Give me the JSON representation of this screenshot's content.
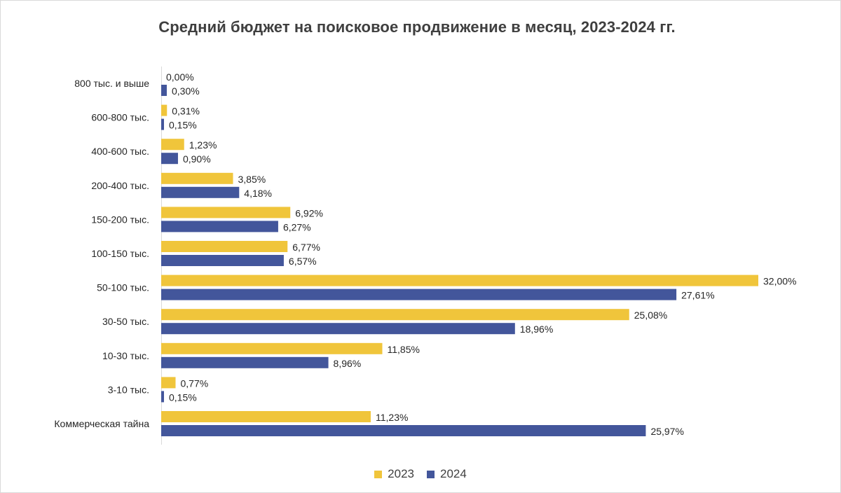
{
  "chart_data": {
    "type": "bar",
    "orientation": "horizontal",
    "title": "Средний бюджет на поисковое продвижение в месяц, 2023-2024 гг.",
    "xlabel": "",
    "ylabel": "",
    "xlim": [
      0,
      32
    ],
    "grid": false,
    "legend_position": "bottom",
    "categories": [
      "800 тыс. и выше",
      "600-800 тыс.",
      "400-600 тыс.",
      "200-400 тыс.",
      "150-200 тыс.",
      "100-150 тыс.",
      "50-100 тыс.",
      "30-50 тыс.",
      "10-30 тыс.",
      "3-10 тыс.",
      "Коммерческая тайна"
    ],
    "series": [
      {
        "name": "2023",
        "color": "#f0c53b",
        "values": [
          0.0,
          0.31,
          1.23,
          3.85,
          6.92,
          6.77,
          32.0,
          25.08,
          11.85,
          0.77,
          11.23
        ],
        "labels": [
          "0,00%",
          "0,31%",
          "1,23%",
          "3,85%",
          "6,92%",
          "6,77%",
          "32,00%",
          "25,08%",
          "11,85%",
          "0,77%",
          "11,23%"
        ]
      },
      {
        "name": "2024",
        "color": "#43569b",
        "values": [
          0.3,
          0.15,
          0.9,
          4.18,
          6.27,
          6.57,
          27.61,
          18.96,
          8.96,
          0.15,
          25.97
        ],
        "labels": [
          "0,30%",
          "0,15%",
          "0,90%",
          "4,18%",
          "6,27%",
          "6,57%",
          "27,61%",
          "18,96%",
          "8,96%",
          "0,15%",
          "25,97%"
        ]
      }
    ]
  }
}
